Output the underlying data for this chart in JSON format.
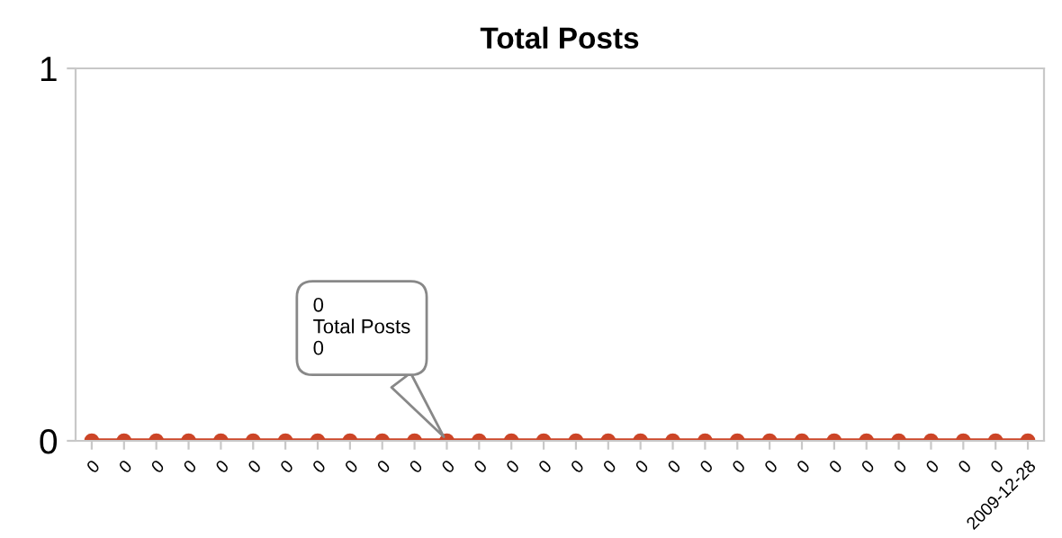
{
  "chart_data": {
    "type": "line",
    "title": "Total Posts",
    "categories": [
      "0",
      "0",
      "0",
      "0",
      "0",
      "0",
      "0",
      "0",
      "0",
      "0",
      "0",
      "0",
      "0",
      "0",
      "0",
      "0",
      "0",
      "0",
      "0",
      "0",
      "0",
      "0",
      "0",
      "0",
      "0",
      "0",
      "0",
      "0",
      "0",
      "2009-12-28"
    ],
    "series": [
      {
        "color": "#cc4527",
        "values": [
          0,
          0,
          0,
          0,
          0,
          0,
          0,
          0,
          0,
          0,
          0,
          0,
          0,
          0,
          0,
          0,
          0,
          0,
          0,
          0,
          0,
          0,
          0,
          0,
          0,
          0,
          0,
          0,
          0,
          0
        ]
      }
    ],
    "ylim": [
      0,
      1
    ],
    "yticks": [
      0,
      1
    ],
    "grid": false,
    "marker": "circle",
    "legend": false,
    "annotations": [
      "0\nTotal Posts\n0"
    ]
  }
}
